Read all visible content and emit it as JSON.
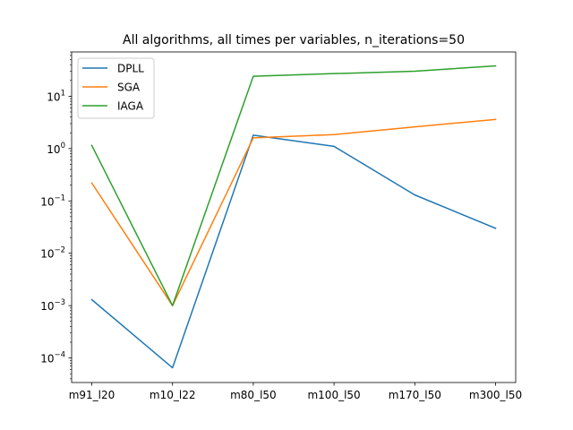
{
  "chart_data": {
    "type": "line",
    "title": "All algorithms, all times per variables, n_iterations=50",
    "xlabel": "",
    "ylabel": "",
    "yscale": "log",
    "ylim": [
      3.4e-05,
      70
    ],
    "categories": [
      "m91_l20",
      "m10_l22",
      "m80_l50",
      "m100_l50",
      "m170_l50",
      "m300_l50"
    ],
    "series": [
      {
        "name": "DPLL",
        "color": "#1f77b4",
        "values": [
          0.0013,
          6.5e-05,
          1.8,
          1.1,
          0.13,
          0.03
        ]
      },
      {
        "name": "SGA",
        "color": "#ff7f0e",
        "values": [
          0.22,
          0.001,
          1.6,
          1.85,
          2.6,
          3.6
        ]
      },
      {
        "name": "IAGA",
        "color": "#2ca02c",
        "values": [
          1.15,
          0.001,
          24,
          27,
          30,
          38
        ]
      }
    ],
    "yticks": [
      {
        "value": 0.0001,
        "base": "10",
        "exp": "−4"
      },
      {
        "value": 0.001,
        "base": "10",
        "exp": "−3"
      },
      {
        "value": 0.01,
        "base": "10",
        "exp": "−2"
      },
      {
        "value": 0.1,
        "base": "10",
        "exp": "−1"
      },
      {
        "value": 1,
        "base": "10",
        "exp": "0"
      },
      {
        "value": 10,
        "base": "10",
        "exp": "1"
      }
    ],
    "legend_position": "upper-left",
    "grid": false
  }
}
